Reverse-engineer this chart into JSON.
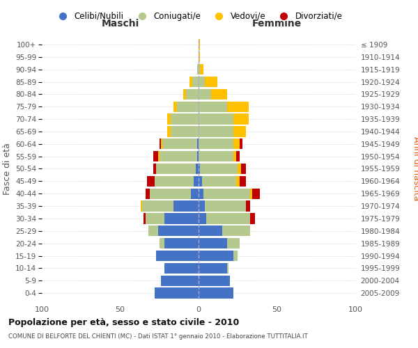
{
  "age_groups": [
    "0-4",
    "5-9",
    "10-14",
    "15-19",
    "20-24",
    "25-29",
    "30-34",
    "35-39",
    "40-44",
    "45-49",
    "50-54",
    "55-59",
    "60-64",
    "65-69",
    "70-74",
    "75-79",
    "80-84",
    "85-89",
    "90-94",
    "95-99",
    "100+"
  ],
  "birth_years": [
    "2005-2009",
    "2000-2004",
    "1995-1999",
    "1990-1994",
    "1985-1989",
    "1980-1984",
    "1975-1979",
    "1970-1974",
    "1965-1969",
    "1960-1964",
    "1955-1959",
    "1950-1954",
    "1945-1949",
    "1940-1944",
    "1935-1939",
    "1930-1934",
    "1925-1929",
    "1920-1924",
    "1915-1919",
    "1910-1914",
    "≤ 1909"
  ],
  "male": {
    "celibi": [
      28,
      24,
      22,
      27,
      22,
      26,
      22,
      16,
      5,
      3,
      2,
      1,
      1,
      0,
      0,
      0,
      0,
      0,
      0,
      0,
      0
    ],
    "coniugati": [
      0,
      0,
      0,
      0,
      3,
      6,
      12,
      20,
      26,
      25,
      25,
      24,
      22,
      18,
      18,
      14,
      8,
      4,
      1,
      0,
      0
    ],
    "vedovi": [
      0,
      0,
      0,
      0,
      0,
      0,
      0,
      1,
      0,
      0,
      0,
      1,
      1,
      2,
      2,
      2,
      2,
      2,
      0,
      0,
      0
    ],
    "divorziati": [
      0,
      0,
      0,
      0,
      0,
      0,
      1,
      0,
      3,
      5,
      2,
      3,
      1,
      0,
      0,
      0,
      0,
      0,
      0,
      0,
      0
    ]
  },
  "female": {
    "nubili": [
      22,
      20,
      18,
      22,
      18,
      15,
      5,
      4,
      3,
      2,
      1,
      0,
      0,
      0,
      0,
      0,
      0,
      0,
      0,
      0,
      0
    ],
    "coniugate": [
      0,
      0,
      1,
      3,
      8,
      18,
      28,
      26,
      30,
      22,
      24,
      22,
      22,
      22,
      22,
      18,
      8,
      4,
      1,
      0,
      0
    ],
    "vedove": [
      0,
      0,
      0,
      0,
      0,
      0,
      0,
      0,
      1,
      2,
      2,
      2,
      4,
      8,
      10,
      14,
      10,
      8,
      2,
      1,
      1
    ],
    "divorziate": [
      0,
      0,
      0,
      0,
      0,
      0,
      3,
      3,
      5,
      4,
      3,
      2,
      2,
      0,
      0,
      0,
      0,
      0,
      0,
      0,
      0
    ]
  },
  "colors": {
    "celibi": "#4472c4",
    "coniugati": "#b5c98e",
    "vedovi": "#ffc000",
    "divorziati": "#c00000"
  },
  "xlim": 100,
  "title": "Popolazione per età, sesso e stato civile - 2010",
  "subtitle": "COMUNE DI BELFORTE DEL CHIENTI (MC) - Dati ISTAT 1° gennaio 2010 - Elaborazione TUTTITALIA.IT",
  "ylabel_left": "Fasce di età",
  "ylabel_right": "Anni di nascita",
  "legend_labels": [
    "Celibi/Nubili",
    "Coniugati/e",
    "Vedovi/e",
    "Divorziati/e"
  ]
}
